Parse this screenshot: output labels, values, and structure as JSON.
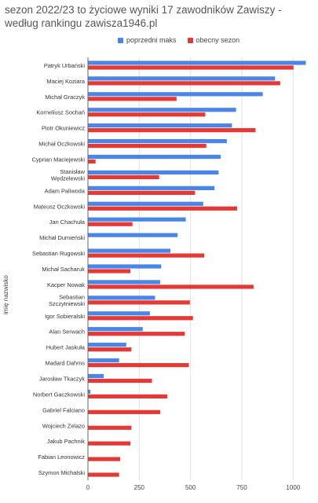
{
  "colors": {
    "series1": "#4a86e8",
    "series2": "#e53935",
    "grid": "#e0e0e0",
    "axis": "#666666"
  },
  "chart_data": {
    "type": "bar",
    "orientation": "horizontal",
    "title": "sezon 2022/23 to życiowe wyniki 17 zawodników Zawiszy - według rankingu zawisza1946.pl",
    "xlabel": "",
    "ylabel": "imię nazwisko",
    "xlim": [
      0,
      1060
    ],
    "xticks": [
      0,
      250,
      500,
      750,
      1000
    ],
    "grid": true,
    "legend_position": "top",
    "categories": [
      "Patryk Urbański",
      "Maciej Koziara",
      "Michał Graczyk",
      "Korneliusz Sochań",
      "Piotr Okuniewicz",
      "Michał Oczkowski",
      "Cyprian Maciejewski",
      "Stanisław Wędzelewski",
      "Adam Paliwoda",
      "Mateusz Oczkowski",
      "Jan Chachuła",
      "Michał Dumieński",
      "Sebastian Rugowski",
      "Michał Sacharuk",
      "Kacper Nowak",
      "Sebastian Szczytniewski",
      "Igor Sobieralski",
      "Alan Serwach",
      "Hubert Jaskuła",
      "Madard Dahms",
      "Jarosław Tkaczyk",
      "Norbert Gaczkowski",
      "Gabriel Falciano",
      "Wojciech Zelazo",
      "Jakub Pachnik",
      "Fabian Leonowicz",
      "Szymon Michalski"
    ],
    "series": [
      {
        "name": "poprzedni maks",
        "values": [
          1060,
          910,
          850,
          720,
          700,
          675,
          645,
          635,
          615,
          560,
          475,
          435,
          400,
          355,
          350,
          325,
          300,
          265,
          185,
          150,
          75,
          10,
          0,
          0,
          0,
          0,
          0
        ]
      },
      {
        "name": "obecny sezon",
        "values": [
          1000,
          935,
          430,
          570,
          815,
          575,
          35,
          345,
          520,
          725,
          215,
          0,
          565,
          205,
          805,
          495,
          510,
          470,
          210,
          490,
          310,
          385,
          350,
          210,
          205,
          155,
          150
        ]
      }
    ]
  }
}
